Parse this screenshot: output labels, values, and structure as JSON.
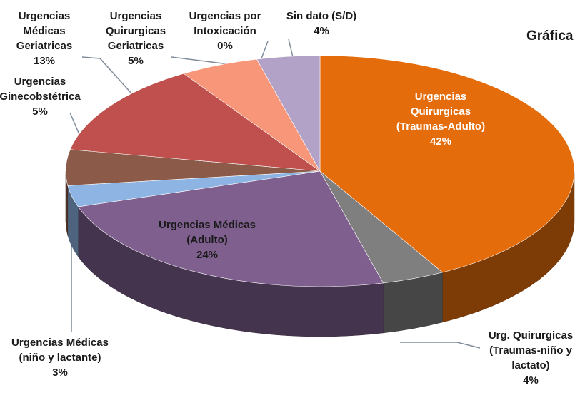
{
  "chart_data": {
    "type": "pie",
    "title": "Gráfica",
    "categories": [
      "Urgencias Quirurgicas (Traumas-Adulto)",
      "Urg. Quirurgicas (Traumas-niño y lactato)",
      "Urgencias Médicas (Adulto)",
      "Urgencias Médicas (niño y lactante)",
      "Urgencias Ginecobstétrica",
      "Urgencias Médicas Geriatricas",
      "Urgencias Quirurgicas Geriatricas",
      "Urgencias por Intoxicación",
      "Sin dato  (S/D)"
    ],
    "values": [
      42,
      4,
      24,
      3,
      5,
      13,
      5,
      0,
      4
    ],
    "value_labels": [
      "42%",
      "4%",
      "24%",
      "3%",
      "5%",
      "13%",
      "5%",
      "0%",
      "4%"
    ],
    "colors": [
      "#e46c0a",
      "#7f7f7f",
      "#7e5f8e",
      "#8eb4e3",
      "#8b5a48",
      "#c0504d",
      "#f79679",
      "#c9c9c9",
      "#b3a2c7"
    ]
  }
}
